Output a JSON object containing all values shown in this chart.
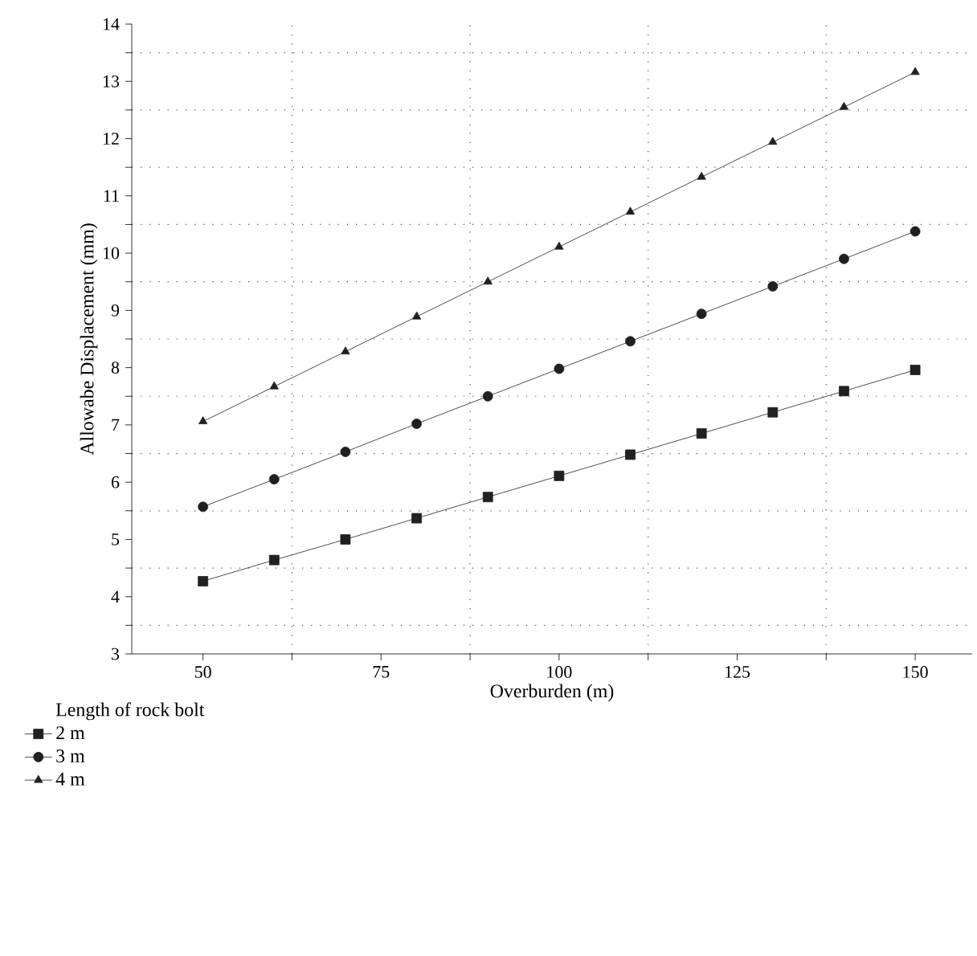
{
  "chart_data": {
    "type": "line",
    "xlabel": "Overburden (m)",
    "ylabel": "Allowabe Displacement (mm)",
    "legend_title": "Length of rock bolt",
    "x": [
      50,
      60,
      70,
      80,
      90,
      100,
      110,
      120,
      130,
      140,
      150
    ],
    "series": [
      {
        "name": "2 m",
        "color": "#231f20",
        "marker": "square",
        "values": [
          4.27,
          4.64,
          5.0,
          5.37,
          5.74,
          6.11,
          6.48,
          6.85,
          7.22,
          7.59,
          7.96
        ]
      },
      {
        "name": "3 m",
        "color": "#231f20",
        "marker": "circle",
        "values": [
          5.57,
          6.05,
          6.53,
          7.02,
          7.5,
          7.98,
          8.46,
          8.94,
          9.42,
          9.9,
          10.38
        ]
      },
      {
        "name": "4 m",
        "color": "#231f20",
        "marker": "triangle",
        "values": [
          7.06,
          7.67,
          8.28,
          8.89,
          9.5,
          10.11,
          10.72,
          11.33,
          11.94,
          12.55,
          13.16
        ]
      }
    ],
    "xlim": [
      40,
      158
    ],
    "ylim": [
      3,
      14
    ],
    "xticks": [
      50,
      75,
      100,
      125,
      150
    ],
    "yticks": [
      3,
      4,
      5,
      6,
      7,
      8,
      9,
      10,
      11,
      12,
      13,
      14
    ],
    "grid": true,
    "legend": "bottom",
    "line_style": "solid"
  }
}
